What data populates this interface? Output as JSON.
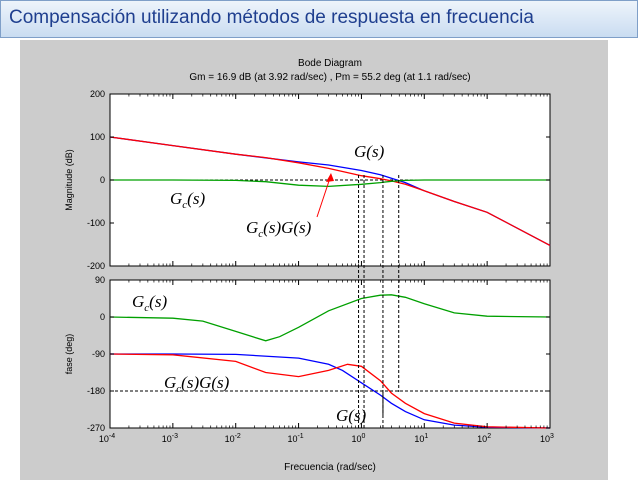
{
  "slide": {
    "title": "Compensación utilizando métodos de respuesta en frecuencia",
    "colors": {
      "title_text": "#1f3f8f",
      "title_bg": "#c9dcf1",
      "figure_bg": "#cccccc"
    }
  },
  "chart_data": [
    {
      "type": "line",
      "title": "Bode Diagram",
      "subtitle": "Gm = 16.9 dB (at 3.92 rad/sec) ,  Pm = 55.2 deg (at 1.1 rad/sec)",
      "ylabel": "Magnitude (dB)",
      "xscale": "log",
      "xlim": [
        0.0001,
        1000
      ],
      "ylim": [
        -200,
        200
      ],
      "yticks": [
        "200",
        "100",
        "0",
        "-100",
        "-200"
      ],
      "grid": false,
      "series": [
        {
          "color": "#0000ff",
          "x": [
            0.0001,
            0.001,
            0.01,
            0.1,
            0.3,
            1,
            2,
            3,
            5,
            10,
            30,
            100,
            1000
          ],
          "y": [
            100,
            80,
            60,
            42,
            35,
            22,
            12,
            4,
            -6,
            -25,
            -50,
            -75,
            -152
          ]
        },
        {
          "color": "#ff0000",
          "x": [
            0.0001,
            0.001,
            0.01,
            0.03,
            0.1,
            0.3,
            1,
            2,
            3,
            5,
            10,
            30,
            100,
            1000
          ],
          "y": [
            100,
            80,
            60,
            52,
            40,
            27,
            10,
            3,
            -2,
            -10,
            -25,
            -50,
            -75,
            -152
          ]
        },
        {
          "color": "#00a000",
          "x": [
            0.0001,
            0.001,
            0.01,
            0.03,
            0.1,
            0.3,
            1,
            2,
            3,
            5,
            10,
            30,
            100,
            1000
          ],
          "y": [
            0,
            0,
            -1,
            -4,
            -12,
            -15,
            -10,
            -6,
            -3,
            -1,
            0,
            0,
            0,
            0
          ]
        }
      ],
      "reference_line_y": 0,
      "annotations": [
        {
          "text": "G(s)"
        },
        {
          "text": "Gc(s)"
        },
        {
          "text": "Gc(s)G(s)"
        }
      ]
    },
    {
      "type": "line",
      "xlabel": "Frecuencia  (rad/sec)",
      "ylabel": "fase (deg)",
      "xscale": "log",
      "xlim": [
        0.0001,
        1000
      ],
      "ylim": [
        -270,
        90
      ],
      "yticks": [
        "90",
        "0",
        "-90",
        "-180",
        "-270"
      ],
      "xticks": [
        "10-4",
        "10-3",
        "10-2",
        "10-1",
        "100",
        "101",
        "102",
        "103"
      ],
      "grid": false,
      "series": [
        {
          "color": "#0000ff",
          "x": [
            0.0001,
            0.001,
            0.01,
            0.1,
            0.3,
            0.5,
            1,
            2,
            3,
            5,
            10,
            30,
            100,
            1000
          ],
          "y": [
            -90,
            -90,
            -91,
            -100,
            -115,
            -130,
            -160,
            -190,
            -210,
            -230,
            -250,
            -263,
            -268,
            -270
          ]
        },
        {
          "color": "#ff0000",
          "x": [
            0.0001,
            0.001,
            0.01,
            0.03,
            0.1,
            0.3,
            0.6,
            1,
            2,
            3,
            5,
            10,
            30,
            100,
            1000
          ],
          "y": [
            -90,
            -92,
            -108,
            -135,
            -145,
            -130,
            -115,
            -120,
            -155,
            -185,
            -210,
            -235,
            -258,
            -267,
            -270
          ]
        },
        {
          "color": "#00a000",
          "x": [
            0.0001,
            0.001,
            0.003,
            0.01,
            0.03,
            0.05,
            0.1,
            0.3,
            1,
            2,
            3,
            5,
            10,
            30,
            100,
            1000
          ],
          "y": [
            0,
            -3,
            -10,
            -35,
            -58,
            -48,
            -25,
            15,
            45,
            53,
            54,
            48,
            32,
            10,
            2,
            0
          ]
        }
      ],
      "reference_line_y": -180,
      "annotations": [
        {
          "text": "Gc(s)"
        },
        {
          "text": "Gc(s)G(s)"
        },
        {
          "text": "G(s)"
        }
      ]
    }
  ]
}
